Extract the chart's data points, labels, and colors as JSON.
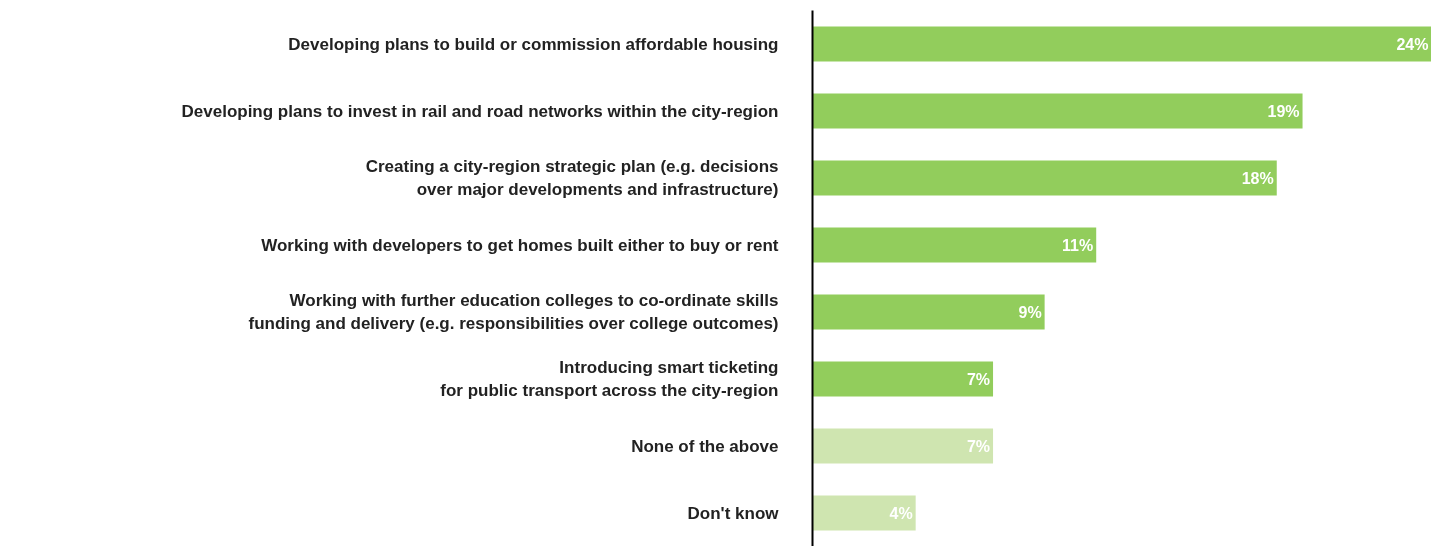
{
  "chart_data": {
    "type": "bar",
    "orientation": "horizontal",
    "categories": [
      "Developing plans to build or commission affordable housing",
      "Developing plans to invest in rail and road networks within the city-region",
      "Creating a city-region strategic plan (e.g. decisions\nover major developments and infrastructure)",
      "Working with developers to get homes built either to buy or rent",
      "Working with further education colleges to co-ordinate skills\nfunding and delivery (e.g. responsibilities over college outcomes)",
      "Introducing smart ticketing\nfor public transport across the city-region",
      "None of the above",
      "Don't know"
    ],
    "values": [
      24,
      19,
      18,
      11,
      9,
      7,
      7,
      4
    ],
    "value_labels": [
      "24%",
      "19%",
      "18%",
      "11%",
      "9%",
      "7%",
      "7%",
      "4%"
    ],
    "colors": [
      "#92cd5c",
      "#92cd5c",
      "#92cd5c",
      "#92cd5c",
      "#92cd5c",
      "#92cd5c",
      "#cfe5b0",
      "#cfe5b0"
    ],
    "xlim": [
      0,
      24
    ],
    "grid": false
  }
}
